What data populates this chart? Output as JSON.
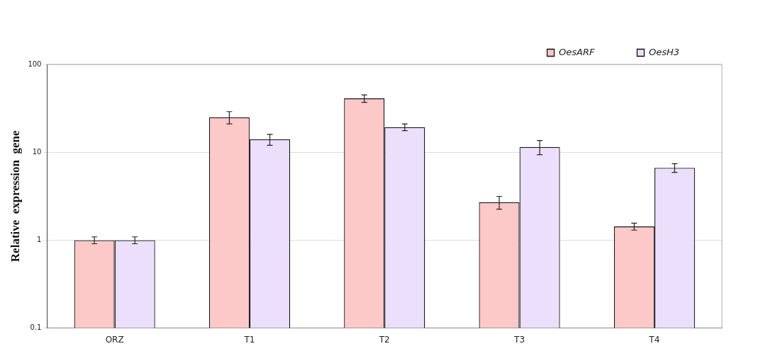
{
  "chart_data": {
    "type": "bar",
    "ylabel": "Relative  expression  gene",
    "categories": [
      "ORZ",
      "T1",
      "T2",
      "T3",
      "T4"
    ],
    "series": [
      {
        "name": "OesARF",
        "color": "#fcc8c8",
        "values": [
          1,
          25,
          41,
          2.7,
          1.43
        ],
        "errors": [
          0.09,
          4,
          4,
          0.45,
          0.13
        ]
      },
      {
        "name": "OesH3",
        "color": "#ecdffc",
        "values": [
          1,
          14,
          19.3,
          11.5,
          6.65
        ],
        "errors": [
          0.09,
          2,
          1.7,
          2.1,
          0.75
        ]
      }
    ],
    "log": "y",
    "ylim": [
      0.1,
      100
    ],
    "yticks": [
      0.1,
      1,
      10,
      100
    ],
    "grid": "y",
    "legend": "top right"
  }
}
